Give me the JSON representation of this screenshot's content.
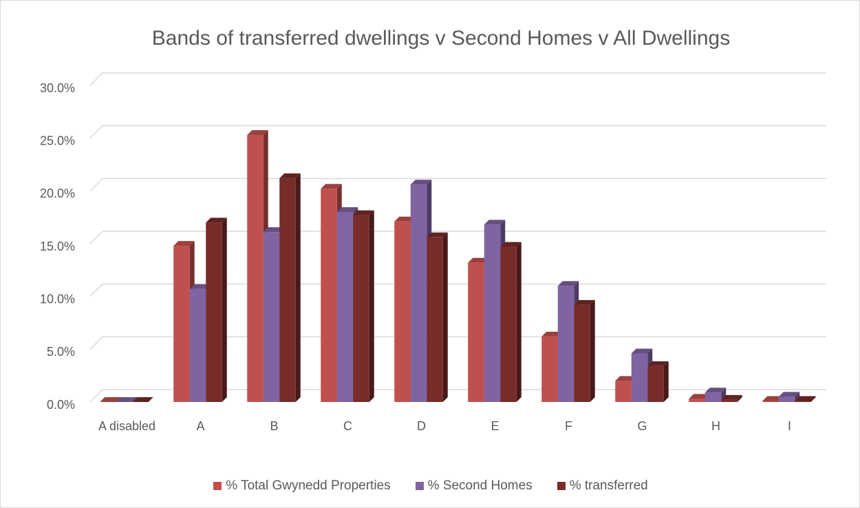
{
  "chart_data": {
    "type": "bar3d",
    "title": "Bands of transferred dwellings v Second Homes v All Dwellings",
    "categories": [
      "A disabled",
      "A",
      "B",
      "C",
      "D",
      "E",
      "F",
      "G",
      "H",
      "I"
    ],
    "series": [
      {
        "name": "% Total Gwynedd Properties",
        "color": "#c0504d",
        "values": [
          0,
          14.8,
          25.3,
          20.2,
          17.1,
          13.2,
          6.2,
          2.0,
          0.3,
          0.1
        ]
      },
      {
        "name": "% Second Homes",
        "color": "#8064a2",
        "values": [
          0,
          10.7,
          16.1,
          18.0,
          20.6,
          16.8,
          11.0,
          4.6,
          0.9,
          0.5
        ]
      },
      {
        "name": "% transferred",
        "color": "#772c2a",
        "values": [
          0,
          17.0,
          21.2,
          17.7,
          15.6,
          14.7,
          9.2,
          3.4,
          0.2,
          0.1
        ]
      }
    ],
    "ylim": [
      0,
      30
    ],
    "yticks": [
      {
        "value": 0,
        "label": "0.0%"
      },
      {
        "value": 5,
        "label": "5.0%"
      },
      {
        "value": 10,
        "label": "10.0%"
      },
      {
        "value": 15,
        "label": "15.0%"
      },
      {
        "value": 20,
        "label": "20.0%"
      },
      {
        "value": 25,
        "label": "25.0%"
      },
      {
        "value": 30,
        "label": "30.0%"
      }
    ],
    "grid": true,
    "legend": "bottom"
  }
}
